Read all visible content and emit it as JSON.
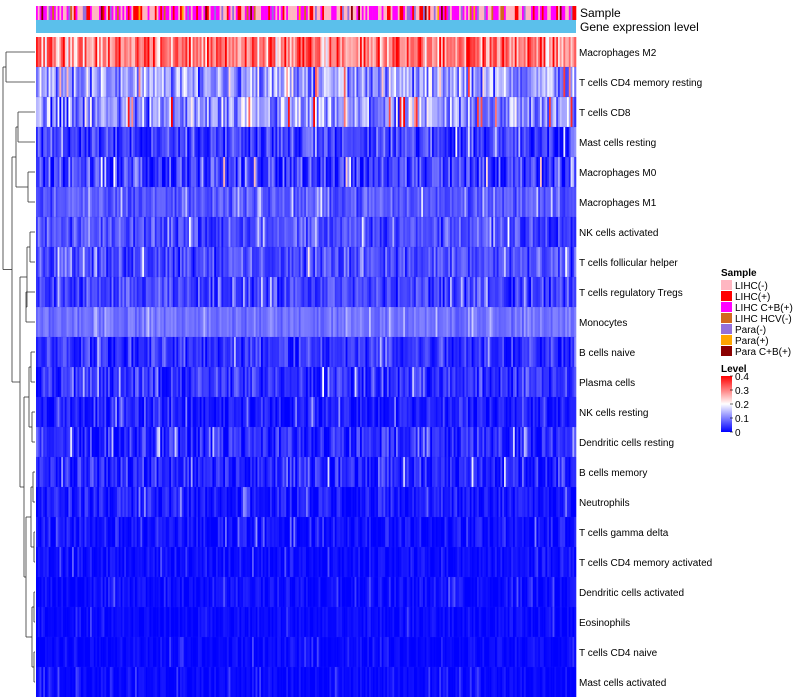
{
  "chart_data": {
    "type": "heatmap",
    "annotation_tracks": [
      "Sample",
      "Gene expression level"
    ],
    "rows": [
      {
        "label": "Macrophages M2",
        "mean": 0.3,
        "spread": 0.08
      },
      {
        "label": "T cells CD4 memory resting",
        "mean": 0.12,
        "spread": 0.07
      },
      {
        "label": "T cells CD8",
        "mean": 0.11,
        "spread": 0.08
      },
      {
        "label": "Mast cells resting",
        "mean": 0.05,
        "spread": 0.05
      },
      {
        "label": "Macrophages M0",
        "mean": 0.05,
        "spread": 0.06
      },
      {
        "label": "Macrophages M1",
        "mean": 0.07,
        "spread": 0.03
      },
      {
        "label": "NK cells activated",
        "mean": 0.06,
        "spread": 0.04
      },
      {
        "label": "T cells follicular helper",
        "mean": 0.06,
        "spread": 0.04
      },
      {
        "label": "T cells regulatory  Tregs",
        "mean": 0.05,
        "spread": 0.04
      },
      {
        "label": "Monocytes",
        "mean": 0.09,
        "spread": 0.02
      },
      {
        "label": "B cells naive",
        "mean": 0.04,
        "spread": 0.04
      },
      {
        "label": "Plasma cells",
        "mean": 0.04,
        "spread": 0.04
      },
      {
        "label": "NK cells resting",
        "mean": 0.02,
        "spread": 0.03
      },
      {
        "label": "Dendritic cells resting",
        "mean": 0.03,
        "spread": 0.04
      },
      {
        "label": "B cells memory",
        "mean": 0.03,
        "spread": 0.04
      },
      {
        "label": "Neutrophils",
        "mean": 0.02,
        "spread": 0.03
      },
      {
        "label": "T cells gamma delta",
        "mean": 0.01,
        "spread": 0.03
      },
      {
        "label": "T cells CD4 memory activated",
        "mean": 0.01,
        "spread": 0.02
      },
      {
        "label": "Dendritic cells activated",
        "mean": 0.01,
        "spread": 0.02
      },
      {
        "label": "Eosinophils",
        "mean": 0.005,
        "spread": 0.015
      },
      {
        "label": "T cells CD4 naive",
        "mean": 0.005,
        "spread": 0.015
      },
      {
        "label": "Mast cells activated",
        "mean": 0.005,
        "spread": 0.015
      }
    ],
    "n_samples": 300,
    "legend_sample": {
      "title": "Sample",
      "entries": [
        {
          "label": "LIHC(-)",
          "color": "#ffb6c1"
        },
        {
          "label": "LIHC(+)",
          "color": "#ff0000"
        },
        {
          "label": "LIHC C+B(+)",
          "color": "#ff00ff"
        },
        {
          "label": "LIHC HCV(-)",
          "color": "#d2691e"
        },
        {
          "label": "Para(-)",
          "color": "#9370db"
        },
        {
          "label": "Para(+)",
          "color": "#ffa500"
        },
        {
          "label": "Para C+B(+)",
          "color": "#8b0000"
        }
      ]
    },
    "legend_level": {
      "title": "Level",
      "range": [
        0,
        0.4
      ],
      "ticks": [
        "0.4",
        "0.3",
        "0.2",
        "0.1",
        "0"
      ],
      "tick_values": [
        0.4,
        0.3,
        0.2,
        0.1,
        0
      ],
      "colors": [
        "#0000ff",
        "#ffffff",
        "#ff0000"
      ]
    },
    "gene_expression_color": "#5bc0eb"
  }
}
